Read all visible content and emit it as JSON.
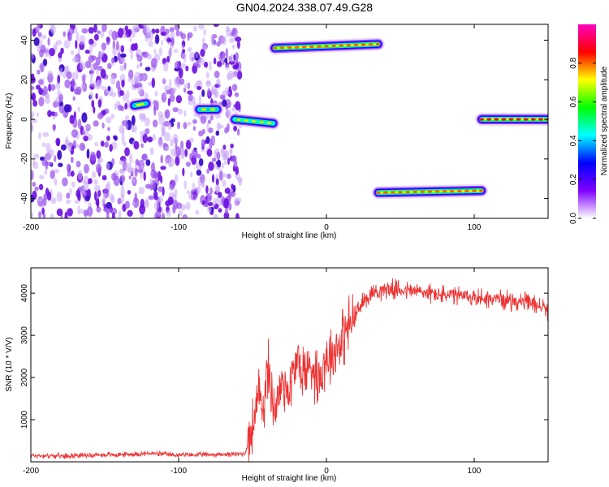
{
  "title": "GN04.2024.338.07.49.G28",
  "chart_data": [
    {
      "type": "heatmap",
      "xlabel": "Height of straight line (km)",
      "ylabel": "Frequency (Hz)",
      "xlim": [
        -200,
        150
      ],
      "ylim": [
        -50,
        48
      ],
      "xticks": [
        -200,
        -100,
        0,
        100
      ],
      "yticks": [
        -40,
        -20,
        0,
        20,
        40
      ],
      "colorbar": {
        "label": "Normalized spectral amplitude",
        "range": [
          0,
          1
        ],
        "ticks": [
          "0.0",
          "0.2",
          "0.4",
          "0.6",
          "0.8"
        ],
        "colors": [
          "#ffffff",
          "#8000ff",
          "#0000ff",
          "#00ffff",
          "#00ff00",
          "#ffff00",
          "#ff0000",
          "#ff00c0"
        ]
      },
      "noise_region": {
        "x": [
          -200,
          -58
        ],
        "y": [
          -50,
          48
        ]
      },
      "tracks": [
        {
          "x": [
            -130,
            -122
          ],
          "y": [
            7,
            8
          ],
          "amplitude": 0.4
        },
        {
          "x": [
            -86,
            -74
          ],
          "y": [
            5,
            5
          ],
          "amplitude": 0.4
        },
        {
          "x": [
            -62,
            -36
          ],
          "y": [
            0,
            -2
          ],
          "amplitude": 0.45
        },
        {
          "x": [
            -35,
            35
          ],
          "y": [
            36,
            38
          ],
          "amplitude": 0.8
        },
        {
          "x": [
            35,
            105
          ],
          "y": [
            -37,
            -36
          ],
          "amplitude": 0.8
        },
        {
          "x": [
            105,
            150
          ],
          "y": [
            0,
            0
          ],
          "amplitude": 0.85
        }
      ]
    },
    {
      "type": "line",
      "xlabel": "Height of straight line (km)",
      "ylabel": "SNR (10 * V/V)",
      "xlim": [
        -200,
        150
      ],
      "ylim": [
        0,
        4600
      ],
      "xticks": [
        -200,
        -100,
        0,
        100
      ],
      "yticks": [
        1000,
        2000,
        3000,
        4000
      ],
      "color": "#ee3333",
      "x": [
        -200,
        -180,
        -160,
        -140,
        -120,
        -100,
        -80,
        -60,
        -55,
        -50,
        -45,
        -42,
        -40,
        -38,
        -35,
        -30,
        -25,
        -20,
        -15,
        -10,
        -5,
        0,
        5,
        10,
        15,
        20,
        25,
        30,
        35,
        40,
        50,
        60,
        80,
        100,
        120,
        140,
        150
      ],
      "y": [
        150,
        140,
        160,
        170,
        200,
        160,
        170,
        180,
        200,
        800,
        1600,
        1300,
        2200,
        1900,
        1200,
        1900,
        1700,
        2400,
        2100,
        2300,
        2000,
        2500,
        2600,
        2900,
        3200,
        3500,
        3800,
        4000,
        4050,
        4100,
        4080,
        4050,
        3950,
        3900,
        3850,
        3750,
        3600
      ]
    }
  ]
}
